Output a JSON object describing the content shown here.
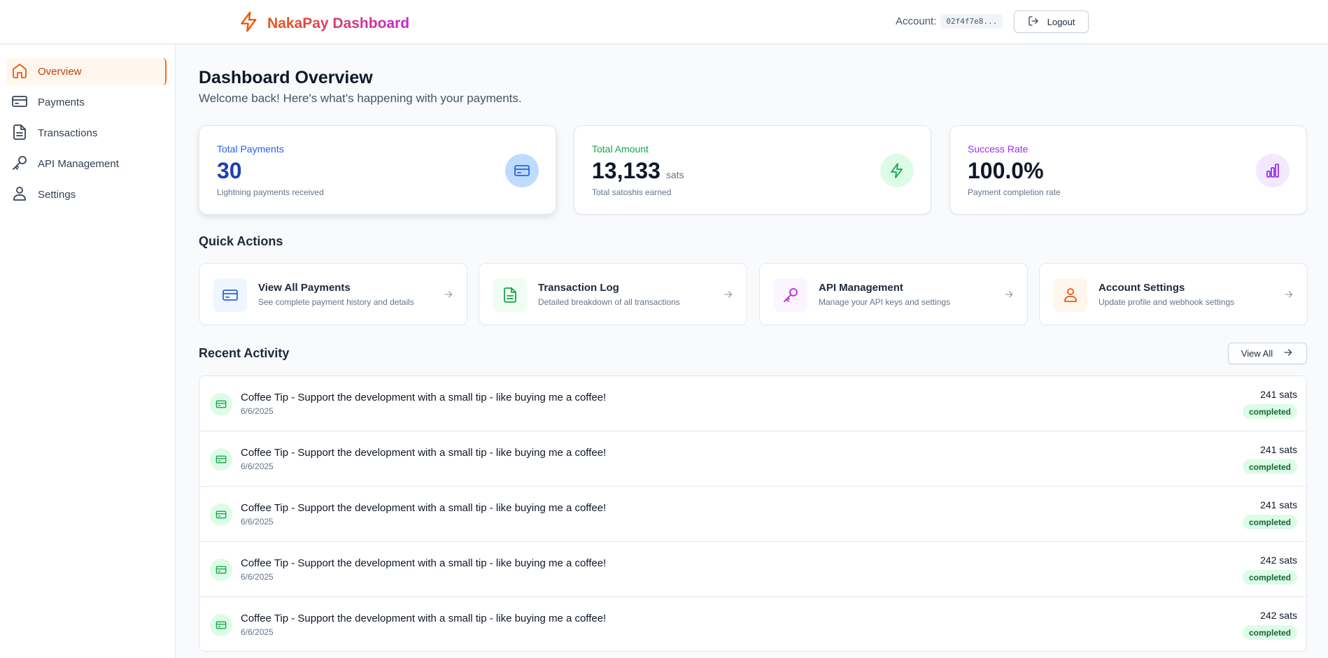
{
  "header": {
    "brand_title": "NakaPay Dashboard",
    "account_label": "Account:",
    "account_id": "02f4f7e8...",
    "logout_label": "Logout",
    "brand_color": "#ea580c"
  },
  "sidebar": {
    "items": [
      {
        "label": "Overview",
        "icon": "home-icon",
        "active": true
      },
      {
        "label": "Payments",
        "icon": "credit-card-icon",
        "active": false
      },
      {
        "label": "Transactions",
        "icon": "document-icon",
        "active": false
      },
      {
        "label": "API Management",
        "icon": "key-icon",
        "active": false
      },
      {
        "label": "Settings",
        "icon": "user-icon",
        "active": false
      }
    ]
  },
  "main": {
    "title": "Dashboard Overview",
    "subtitle": "Welcome back! Here's what's happening with your payments.",
    "stats": [
      {
        "label": "Total Payments",
        "value": "30",
        "unit": "",
        "desc": "Lightning payments received",
        "icon": "credit-card-icon",
        "color": "#2563eb"
      },
      {
        "label": "Total Amount",
        "value": "13,133",
        "unit": "sats",
        "desc": "Total satoshis earned",
        "icon": "lightning-icon",
        "color": "#16a34a"
      },
      {
        "label": "Success Rate",
        "value": "100.0%",
        "unit": "",
        "desc": "Payment completion rate",
        "icon": "bar-chart-icon",
        "color": "#9333ea"
      }
    ],
    "quick_actions_title": "Quick Actions",
    "quick_actions": [
      {
        "title": "View All Payments",
        "desc": "See complete payment history and details",
        "icon": "credit-card-icon"
      },
      {
        "title": "Transaction Log",
        "desc": "Detailed breakdown of all transactions",
        "icon": "document-icon"
      },
      {
        "title": "API Management",
        "desc": "Manage your API keys and settings",
        "icon": "key-icon"
      },
      {
        "title": "Account Settings",
        "desc": "Update profile and webhook settings",
        "icon": "user-icon"
      }
    ],
    "recent_activity_title": "Recent Activity",
    "view_all_label": "View All",
    "activity": [
      {
        "title": "Coffee Tip - Support the development with a small tip - like buying me a coffee!",
        "date": "6/6/2025",
        "amount": "241 sats",
        "status": "completed"
      },
      {
        "title": "Coffee Tip - Support the development with a small tip - like buying me a coffee!",
        "date": "6/6/2025",
        "amount": "241 sats",
        "status": "completed"
      },
      {
        "title": "Coffee Tip - Support the development with a small tip - like buying me a coffee!",
        "date": "6/6/2025",
        "amount": "241 sats",
        "status": "completed"
      },
      {
        "title": "Coffee Tip - Support the development with a small tip - like buying me a coffee!",
        "date": "6/6/2025",
        "amount": "242 sats",
        "status": "completed"
      },
      {
        "title": "Coffee Tip - Support the development with a small tip - like buying me a coffee!",
        "date": "6/6/2025",
        "amount": "242 sats",
        "status": "completed"
      }
    ]
  }
}
